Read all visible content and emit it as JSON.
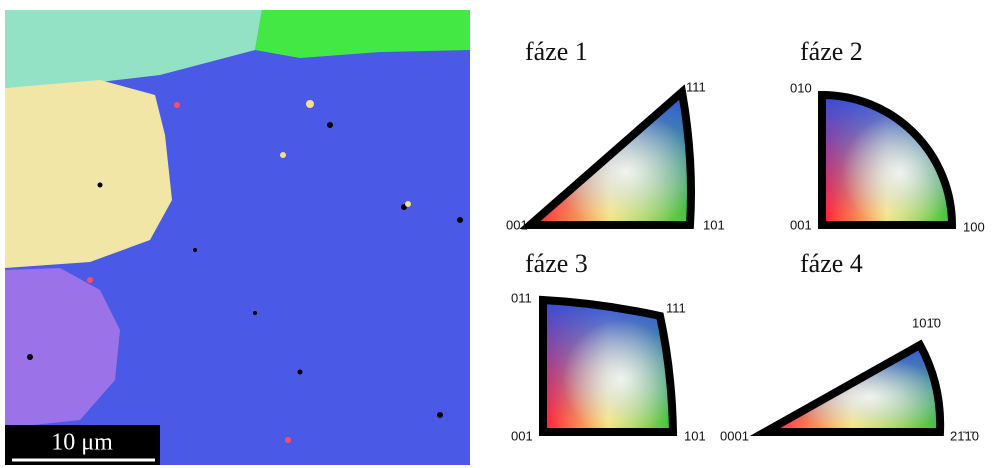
{
  "scale_bar": "10 μm",
  "keys": [
    {
      "title": "fáze 1",
      "labels": [
        "001",
        "111",
        "101"
      ]
    },
    {
      "title": "fáze 2",
      "labels": [
        "010",
        "001",
        "100"
      ]
    },
    {
      "title": "fáze 3",
      "labels": [
        "011",
        "111",
        "001",
        "101"
      ]
    },
    {
      "title": "fáze 4",
      "labels": [
        "101̄0",
        "0001",
        "21̄1̄0"
      ]
    }
  ]
}
